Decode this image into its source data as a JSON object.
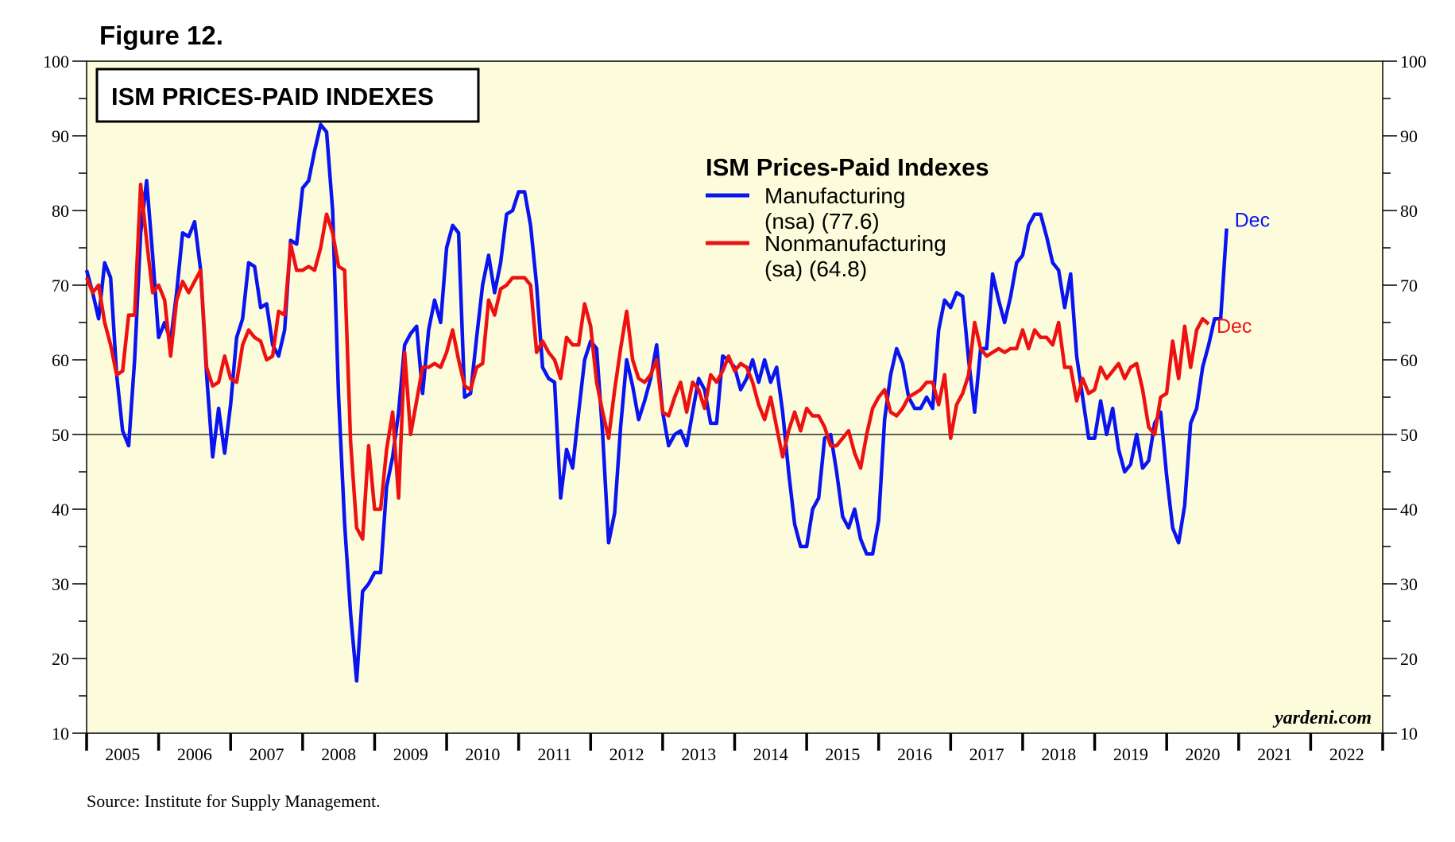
{
  "figure_label": "Figure 12.",
  "source": "Source: Institute for Supply Management.",
  "watermark": "yardeni.com",
  "colors": {
    "background": "#fcfcdc",
    "manufacturing": "#0a14f0",
    "nonmanufacturing": "#ee1111"
  },
  "chart_data": {
    "type": "line",
    "title": "ISM PRICES-PAID INDEXES",
    "legend_title": "ISM Prices-Paid Indexes",
    "legend_placement": "top-center",
    "ylim": [
      10,
      100
    ],
    "y_ticks": [
      10,
      20,
      30,
      40,
      50,
      60,
      70,
      80,
      90,
      100
    ],
    "y_tick_labels_left": [
      "10",
      "20",
      "30",
      "40",
      "50",
      "60",
      "70",
      "80",
      "90",
      "100"
    ],
    "y_tick_labels_right": [
      "10",
      "20",
      "30",
      "40",
      "50",
      "60",
      "70",
      "80",
      "90",
      "100"
    ],
    "reference_line": 50,
    "xlim": [
      2005.0,
      2023.0
    ],
    "year_labels": [
      "2005",
      "2006",
      "2007",
      "2008",
      "2009",
      "2010",
      "2011",
      "2012",
      "2013",
      "2014",
      "2015",
      "2016",
      "2017",
      "2018",
      "2019",
      "2020",
      "2021",
      "2022"
    ],
    "series": [
      {
        "name": "Manufacturing",
        "legend_line1": "Manufacturing",
        "legend_line2": "(nsa) (77.6)",
        "end_label": "Dec",
        "x_start": 2005.0,
        "step": 0.08333,
        "values": [
          72,
          69,
          65.5,
          73,
          71,
          58,
          50.5,
          48.5,
          60,
          77,
          84,
          74,
          63,
          65,
          62.5,
          69,
          77,
          76.5,
          78.5,
          72,
          58,
          47,
          53.5,
          47.5,
          54,
          63,
          65.5,
          73,
          72.5,
          67,
          67.5,
          62,
          60.5,
          64,
          76,
          75.5,
          83,
          84,
          88,
          91.5,
          90.5,
          80,
          55,
          38,
          26,
          17,
          29,
          30,
          31.5,
          31.5,
          43,
          47,
          53,
          62,
          63.5,
          64.5,
          55.5,
          64,
          68,
          65,
          75,
          78,
          77,
          55,
          55.5,
          63,
          70,
          74,
          69,
          73,
          79.5,
          80,
          82.5,
          82.5,
          78,
          70,
          59,
          57.5,
          57,
          41.5,
          48,
          45.5,
          53,
          60,
          62.5,
          61.5,
          50,
          35.5,
          39.5,
          51,
          60,
          56.5,
          52,
          54.5,
          57.5,
          62,
          53,
          48.5,
          50,
          50.5,
          48.5,
          53,
          57.5,
          56,
          51.5,
          51.5,
          60.5,
          60,
          59,
          56,
          57.5,
          60,
          57,
          60,
          57,
          59,
          53,
          45,
          38,
          35,
          35,
          40,
          41.5,
          49.5,
          50,
          45,
          39,
          37.5,
          40,
          36,
          34,
          34,
          38.5,
          52,
          58,
          61.5,
          59.5,
          55,
          53.5,
          53.5,
          55,
          53.5,
          64,
          68,
          67,
          69,
          68.5,
          60,
          53,
          61.5,
          61.5,
          71.5,
          68,
          65,
          68.5,
          73,
          74,
          78,
          79.5,
          79.5,
          76.5,
          73,
          72,
          67,
          71.5,
          60.5,
          55,
          49.5,
          49.5,
          54.5,
          50,
          53.5,
          48,
          45,
          46,
          50,
          45.5,
          46.5,
          51.5,
          53,
          44.5,
          37.5,
          35.5,
          40.5,
          51.5,
          53.5,
          59,
          62,
          65.5,
          65.5,
          77.6
        ]
      },
      {
        "name": "Nonmanufacturing",
        "legend_line1": "Nonmanufacturing",
        "legend_line2": "(sa) (64.8)",
        "end_label": "Dec",
        "x_start": 2005.0,
        "step": 0.08333,
        "values": [
          71,
          69,
          70,
          65,
          62,
          58,
          58.5,
          66,
          66,
          83.5,
          76,
          69,
          70,
          68,
          60.5,
          68,
          70.5,
          69,
          70.5,
          72,
          59,
          56.5,
          57,
          60.5,
          57.5,
          57,
          62,
          64,
          63,
          62.5,
          60,
          60.5,
          66.5,
          66,
          75.5,
          72,
          72,
          72.5,
          72,
          75,
          79.5,
          77,
          72.5,
          72,
          49,
          37.5,
          36,
          48.5,
          40,
          40,
          48,
          53,
          41.5,
          61,
          50,
          54.5,
          59,
          59,
          59.5,
          59,
          61,
          64,
          60,
          56.5,
          56,
          59,
          59.5,
          68,
          66,
          69.5,
          70,
          71,
          71,
          71,
          70,
          61,
          62.5,
          61,
          60,
          57.5,
          63,
          62,
          62,
          67.5,
          64.5,
          57,
          53,
          49.5,
          56,
          61.5,
          66.5,
          60,
          57.5,
          57,
          58,
          60,
          53,
          52.5,
          55,
          57,
          53,
          57,
          56,
          53.5,
          58,
          57,
          58.5,
          60.5,
          58.5,
          59.5,
          59,
          57,
          54,
          52,
          55,
          51,
          47,
          50.5,
          53,
          50.5,
          53.5,
          52.5,
          52.5,
          51,
          48.5,
          48.5,
          49.5,
          50.5,
          47.5,
          45.5,
          50,
          53.5,
          55,
          56,
          53,
          52.5,
          53.5,
          55,
          55.5,
          56,
          57,
          57,
          54,
          58,
          49.5,
          54,
          55.5,
          58,
          65,
          61.5,
          60.5,
          61,
          61.5,
          61,
          61.5,
          61.5,
          64,
          61.5,
          64,
          63,
          63,
          62,
          65,
          59,
          59,
          54.5,
          57.5,
          55.5,
          56,
          59,
          57.5,
          58.5,
          59.5,
          57.5,
          59,
          59.5,
          56,
          51,
          50,
          55,
          55.5,
          62.5,
          57.5,
          64.5,
          59,
          64,
          65.5,
          64.8
        ]
      }
    ]
  }
}
